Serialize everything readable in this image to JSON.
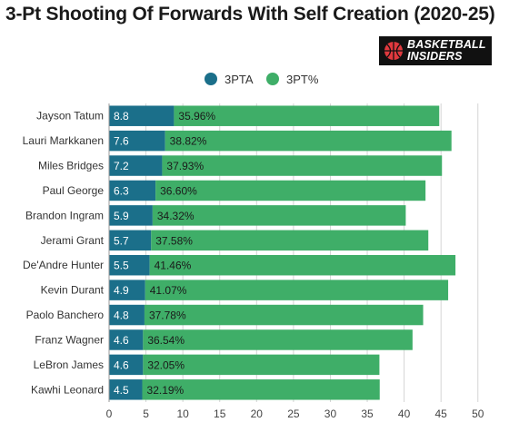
{
  "title": "3-Pt Shooting Of Forwards With Self Creation (2020-25)",
  "logo": {
    "line1": "BASKETBALL",
    "line2": "INSIDERS"
  },
  "chart_data": {
    "type": "bar",
    "orientation": "horizontal",
    "stacked": true,
    "categories": [
      "Jayson Tatum",
      "Lauri Markkanen",
      "Miles Bridges",
      "Paul George",
      "Brandon Ingram",
      "Jerami Grant",
      "De'Andre Hunter",
      "Kevin Durant",
      "Paolo Banchero",
      "Franz Wagner",
      "LeBron James",
      "Kawhi Leonard"
    ],
    "series": [
      {
        "name": "3PTA",
        "color": "#1b6f8a",
        "values": [
          8.8,
          7.6,
          7.2,
          6.3,
          5.9,
          5.7,
          5.5,
          4.9,
          4.8,
          4.6,
          4.6,
          4.5
        ],
        "labels": [
          "8.8",
          "7.6",
          "7.2",
          "6.3",
          "5.9",
          "5.7",
          "5.5",
          "4.9",
          "4.8",
          "4.6",
          "4.6",
          "4.5"
        ]
      },
      {
        "name": "3PT%",
        "color": "#3fae68",
        "values": [
          35.96,
          38.82,
          37.93,
          36.6,
          34.32,
          37.58,
          41.46,
          41.07,
          37.78,
          36.54,
          32.05,
          32.19
        ],
        "labels": [
          "35.96%",
          "38.82%",
          "37.93%",
          "36.60%",
          "34.32%",
          "37.58%",
          "41.46%",
          "41.07%",
          "37.78%",
          "36.54%",
          "32.05%",
          "32.19%"
        ]
      }
    ],
    "xlim": [
      0,
      52
    ],
    "xticks": [
      0,
      5,
      10,
      15,
      20,
      25,
      30,
      35,
      40,
      45,
      50
    ],
    "grid": "vertical",
    "legend": "top-center"
  }
}
